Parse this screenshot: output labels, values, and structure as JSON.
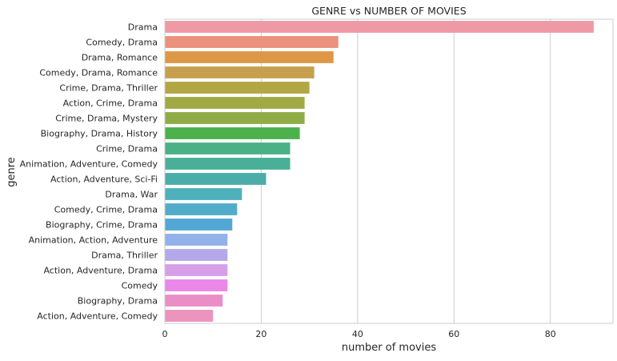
{
  "chart_data": {
    "type": "bar",
    "orientation": "horizontal",
    "title": "GENRE vs NUMBER OF MOVIES",
    "xlabel": "number of movies",
    "ylabel": "genre",
    "xlim": [
      0,
      93
    ],
    "xticks": [
      0,
      20,
      40,
      60,
      80
    ],
    "grid": true,
    "categories": [
      "Drama",
      "Comedy, Drama",
      "Drama, Romance",
      "Comedy, Drama, Romance",
      "Crime, Drama, Thriller",
      "Action, Crime, Drama",
      "Crime, Drama, Mystery",
      "Biography, Drama, History",
      "Crime, Drama",
      "Animation, Adventure, Comedy",
      "Action, Adventure, Sci-Fi",
      "Drama, War",
      "Comedy, Crime, Drama",
      "Biography, Crime, Drama",
      "Animation, Action, Adventure",
      "Drama, Thriller",
      "Action, Adventure, Drama",
      "Comedy",
      "Biography, Drama",
      "Action, Adventure, Comedy"
    ],
    "values": [
      89,
      36,
      35,
      31,
      30,
      29,
      29,
      28,
      26,
      26,
      21,
      16,
      15,
      14,
      13,
      13,
      13,
      13,
      12,
      10
    ],
    "colors": [
      "#ef99a4",
      "#eb917c",
      "#dd9746",
      "#c6a04d",
      "#b3a645",
      "#a1a945",
      "#8fac46",
      "#4cb14d",
      "#49b185",
      "#4aaf98",
      "#4aada9",
      "#4eb0bb",
      "#51acc9",
      "#53a7d4",
      "#93b1ea",
      "#b4a8ea",
      "#d69fe7",
      "#ea87e8",
      "#ea8ec8",
      "#eb94be"
    ]
  }
}
